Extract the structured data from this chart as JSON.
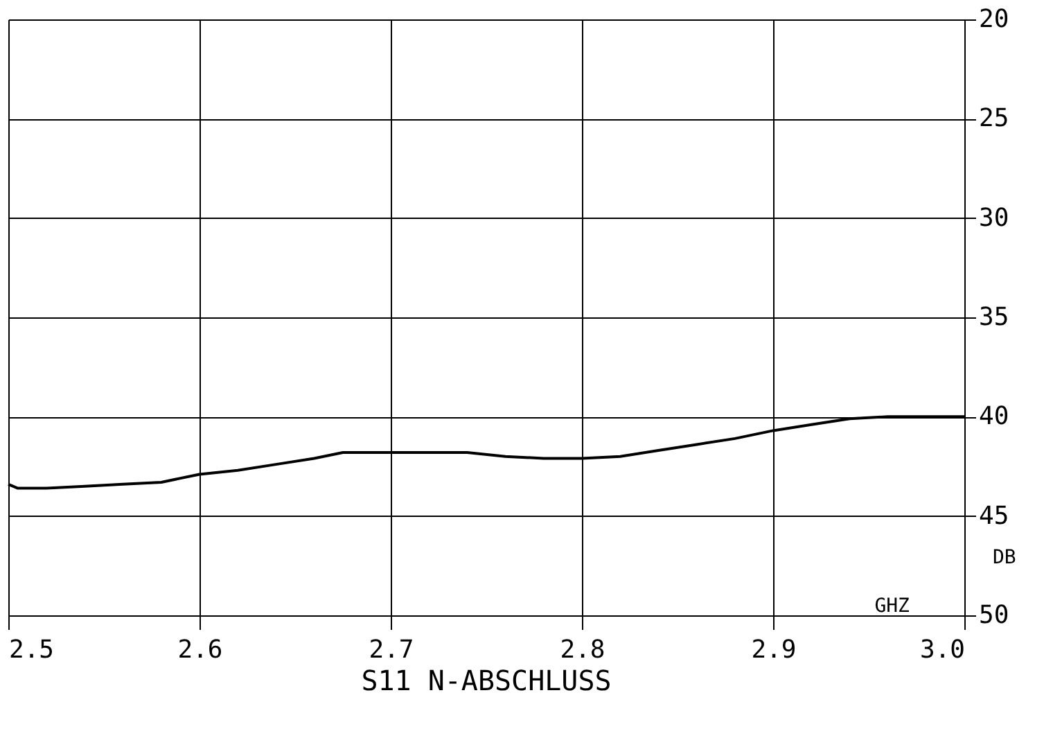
{
  "chart_data": {
    "type": "line",
    "title": "S11 N-ABSCHLUSS",
    "xlabel": "GHZ",
    "ylabel": "DB",
    "x": [
      2.5,
      2.505,
      2.52,
      2.54,
      2.56,
      2.58,
      2.6,
      2.62,
      2.64,
      2.66,
      2.675,
      2.7,
      2.72,
      2.74,
      2.76,
      2.78,
      2.8,
      2.82,
      2.84,
      2.86,
      2.88,
      2.9,
      2.92,
      2.94,
      2.96,
      2.98,
      3.0
    ],
    "series": [
      {
        "color": "#000000",
        "values": [
          43.4,
          43.6,
          43.6,
          43.5,
          43.4,
          43.3,
          42.9,
          42.7,
          42.4,
          42.1,
          41.8,
          41.8,
          41.8,
          41.8,
          42.0,
          42.1,
          42.1,
          42.0,
          41.7,
          41.4,
          41.1,
          40.7,
          40.4,
          40.1,
          40.0,
          40.0,
          40.0
        ]
      }
    ],
    "xlim": [
      2.5,
      3.0
    ],
    "xticks": [
      {
        "value": 2.5,
        "label": "2.5"
      },
      {
        "value": 2.6,
        "label": "2.6"
      },
      {
        "value": 2.7,
        "label": "2.7"
      },
      {
        "value": 2.8,
        "label": "2.8"
      },
      {
        "value": 2.9,
        "label": "2.9"
      },
      {
        "value": 3.0,
        "label": "3.0"
      }
    ],
    "ylim": [
      50,
      20
    ],
    "yticks": [
      20,
      25,
      30,
      35,
      40,
      45,
      50
    ],
    "grid": true,
    "marker": "none",
    "line_style": "solid"
  }
}
